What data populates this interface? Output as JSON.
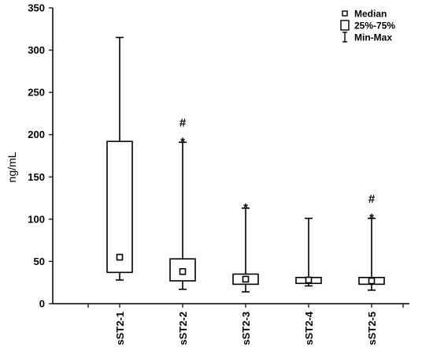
{
  "chart_data": {
    "type": "box",
    "ylabel": "ng/mL",
    "ylim": [
      0,
      350
    ],
    "yticks": [
      0,
      50,
      100,
      150,
      200,
      250,
      300,
      350
    ],
    "categories": [
      "sST2-1",
      "sST2-2",
      "sST2-3",
      "sST2-4",
      "sST2-5"
    ],
    "boxes": [
      {
        "min": 28,
        "q1": 37,
        "median": 55,
        "q3": 192,
        "max": 315,
        "markers": []
      },
      {
        "min": 17,
        "q1": 27,
        "median": 38,
        "q3": 53,
        "max": 191,
        "markers": [
          "*",
          "#"
        ]
      },
      {
        "min": 14,
        "q1": 23,
        "median": 29,
        "q3": 35,
        "max": 113,
        "markers": [
          "*"
        ]
      },
      {
        "min": 21,
        "q1": 24,
        "median": 28,
        "q3": 31,
        "max": 101,
        "markers": []
      },
      {
        "min": 16,
        "q1": 23,
        "median": 27,
        "q3": 31,
        "max": 101,
        "markers": [
          "*",
          "#"
        ]
      }
    ],
    "legend": {
      "position": "top-right",
      "items": [
        {
          "symbol": "median-square",
          "label": "Median"
        },
        {
          "symbol": "box",
          "label": "25%-75%"
        },
        {
          "symbol": "whisker",
          "label": "Min-Max"
        }
      ]
    },
    "grid": false
  }
}
